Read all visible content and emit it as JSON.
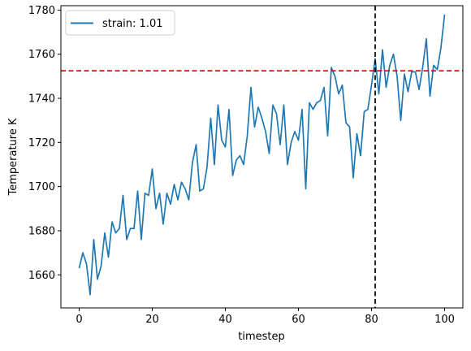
{
  "chart_data": {
    "type": "line",
    "xlabel": "timestep",
    "ylabel": "Temperature K",
    "xlim": [
      -5,
      105
    ],
    "ylim": [
      1645,
      1782
    ],
    "xticks": [
      0,
      20,
      40,
      60,
      80,
      100
    ],
    "yticks": [
      1660,
      1680,
      1700,
      1720,
      1740,
      1760,
      1780
    ],
    "grid": false,
    "legend_position": "top-left",
    "series": [
      {
        "name": "strain: 1.01",
        "color": "#1f77b4",
        "x": [
          0,
          1,
          2,
          3,
          4,
          5,
          6,
          7,
          8,
          9,
          10,
          11,
          12,
          13,
          14,
          15,
          16,
          17,
          18,
          19,
          20,
          21,
          22,
          23,
          24,
          25,
          26,
          27,
          28,
          29,
          30,
          31,
          32,
          33,
          34,
          35,
          36,
          37,
          38,
          39,
          40,
          41,
          42,
          43,
          44,
          45,
          46,
          47,
          48,
          49,
          50,
          51,
          52,
          53,
          54,
          55,
          56,
          57,
          58,
          59,
          60,
          61,
          62,
          63,
          64,
          65,
          66,
          67,
          68,
          69,
          70,
          71,
          72,
          73,
          74,
          75,
          76,
          77,
          78,
          79,
          80,
          81,
          82,
          83,
          84,
          85,
          86,
          87,
          88,
          89,
          90,
          91,
          92,
          93,
          94,
          95,
          96,
          97,
          98,
          99,
          100
        ],
        "values": [
          1663,
          1670,
          1665,
          1651,
          1676,
          1658,
          1664,
          1679,
          1668,
          1684,
          1679,
          1681,
          1696,
          1676,
          1681,
          1681,
          1698,
          1676,
          1697,
          1696,
          1708,
          1690,
          1697,
          1683,
          1697,
          1692,
          1701,
          1694,
          1702,
          1699,
          1694,
          1711,
          1719,
          1698,
          1699,
          1709,
          1731,
          1710,
          1737,
          1721,
          1718,
          1735,
          1705,
          1712,
          1714,
          1710,
          1723,
          1745,
          1727,
          1736,
          1731,
          1725,
          1715,
          1737,
          1733,
          1719,
          1737,
          1710,
          1720,
          1725,
          1721,
          1735,
          1699,
          1738,
          1735,
          1738,
          1739,
          1745,
          1723,
          1754,
          1750,
          1742,
          1746,
          1729,
          1727,
          1704,
          1724,
          1714,
          1734,
          1735,
          1746,
          1758,
          1742,
          1762,
          1745,
          1755,
          1760,
          1750,
          1730,
          1751,
          1743,
          1752,
          1752,
          1744,
          1754,
          1767,
          1741,
          1755,
          1753,
          1763,
          1778
        ]
      }
    ],
    "reference_lines": [
      {
        "orientation": "horizontal",
        "value": 1752.5,
        "color": "#ff0000",
        "style": "dashed"
      },
      {
        "orientation": "vertical",
        "value": 81,
        "color": "#000000",
        "style": "dashed"
      }
    ]
  }
}
